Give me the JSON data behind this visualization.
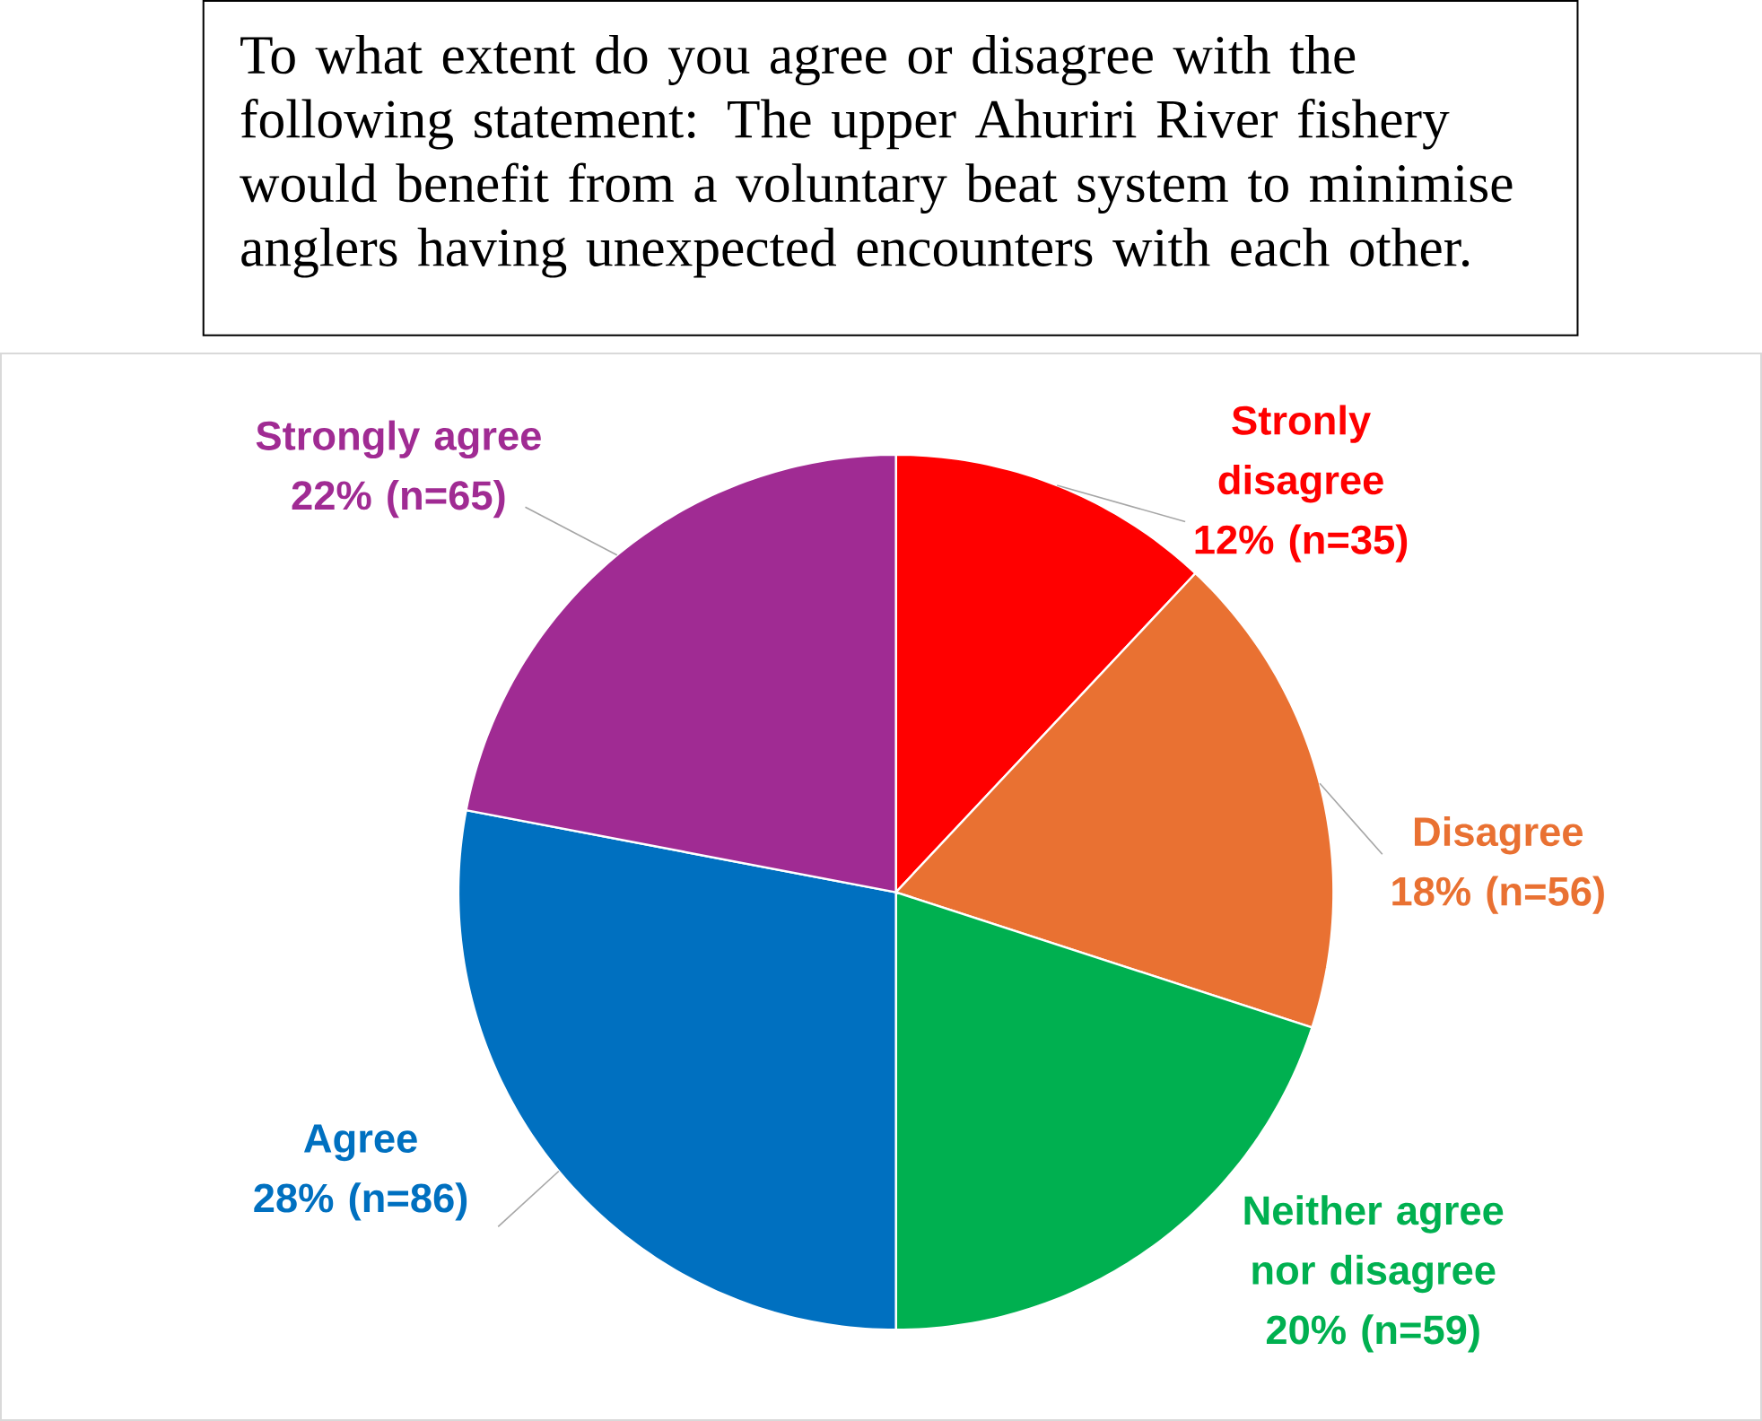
{
  "chart_data": {
    "type": "pie",
    "title": "To what extent do you agree or disagree with the following statement: The upper Ahuriri River fishery would benefit from a voluntary beat system to minimise anglers having unexpected encounters with each other.",
    "categories": [
      "Stronly disagree",
      "Disagree",
      "Neither agree nor disagree",
      "Agree",
      "Strongly agree"
    ],
    "values": [
      12,
      18,
      20,
      28,
      22
    ],
    "colors": [
      "#ff0000",
      "#e97132",
      "#00b050",
      "#0070c0",
      "#a02b93"
    ],
    "value_labels": [
      "12% (n=35)",
      "18% (n=56)",
      "20% (n=59)",
      "28% (n=86)",
      "22% (n=65)"
    ]
  }
}
